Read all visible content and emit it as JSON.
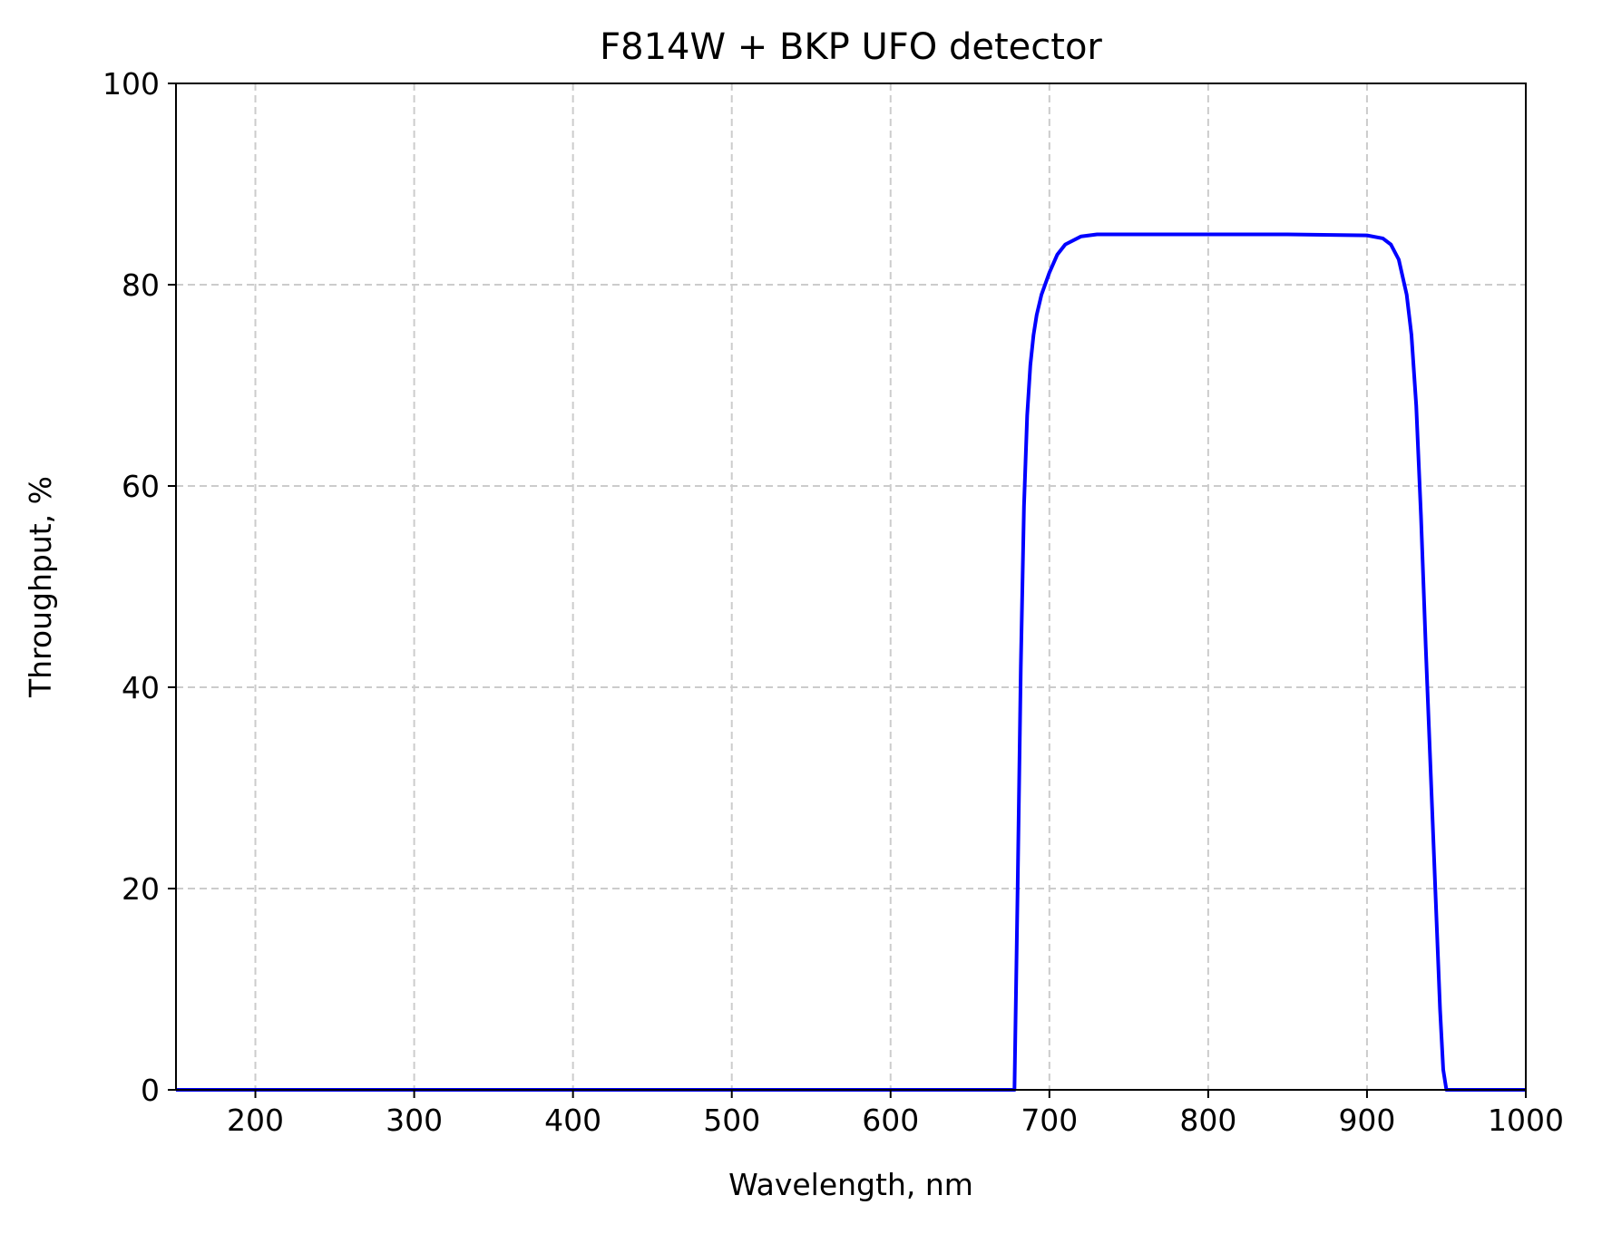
{
  "chart_data": {
    "type": "line",
    "title": "F814W + BKP UFO detector",
    "xlabel": "Wavelength, nm",
    "ylabel": "Throughput, %",
    "xlim": [
      150,
      1000
    ],
    "ylim": [
      0,
      100
    ],
    "xticks": [
      "200",
      "300",
      "400",
      "500",
      "600",
      "700",
      "800",
      "900",
      "1000"
    ],
    "yticks": [
      "0",
      "20",
      "40",
      "60",
      "80",
      "100"
    ],
    "grid": true,
    "legend": "none",
    "series": [
      {
        "color": "#0000ff",
        "x": [
          150,
          200,
          300,
          400,
          500,
          600,
          678,
          680,
          682,
          684,
          686,
          688,
          690,
          692,
          695,
          700,
          705,
          710,
          720,
          730,
          750,
          800,
          850,
          900,
          910,
          915,
          920,
          925,
          928,
          931,
          934,
          937,
          940,
          943,
          946,
          948,
          950,
          952,
          1000
        ],
        "y": [
          0,
          0,
          0,
          0,
          0,
          0,
          0,
          20,
          42,
          58,
          67,
          72,
          75,
          77,
          79,
          81.2,
          83,
          84,
          84.8,
          85,
          85,
          85,
          85,
          84.9,
          84.6,
          84,
          82.5,
          79,
          75,
          68,
          57,
          44,
          32,
          20,
          8,
          2,
          0,
          0,
          0
        ]
      }
    ]
  }
}
